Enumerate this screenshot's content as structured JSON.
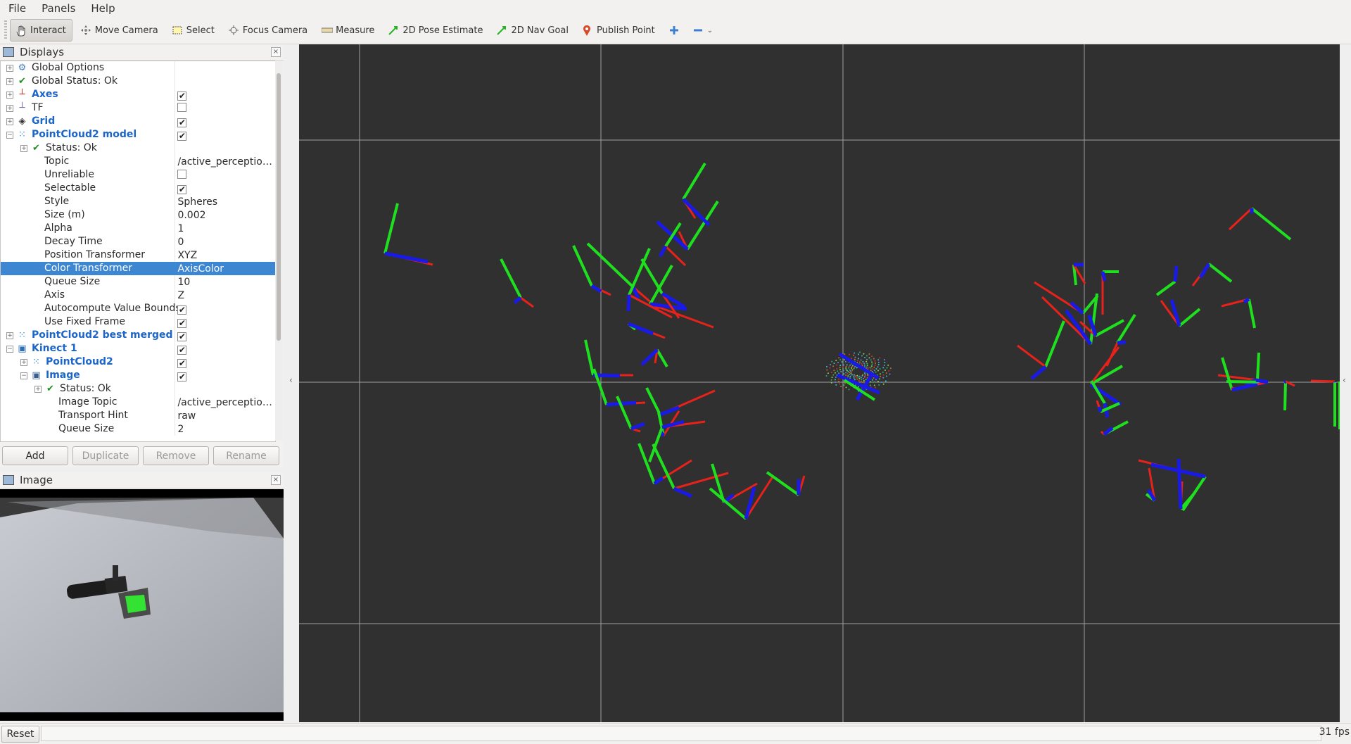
{
  "menu": [
    {
      "label": "File"
    },
    {
      "label": "Panels"
    },
    {
      "label": "Help"
    }
  ],
  "toolbar": {
    "tools": [
      {
        "label": "Interact",
        "icon": "hand-icon",
        "active": true
      },
      {
        "label": "Move Camera",
        "icon": "move-camera-icon"
      },
      {
        "label": "Select",
        "icon": "select-icon"
      },
      {
        "label": "Focus Camera",
        "icon": "focus-camera-icon"
      },
      {
        "label": "Measure",
        "icon": "ruler-icon"
      },
      {
        "label": "2D Pose Estimate",
        "icon": "green-arrow-icon"
      },
      {
        "label": "2D Nav Goal",
        "icon": "green-arrow-icon"
      },
      {
        "label": "Publish Point",
        "icon": "map-pin-icon"
      }
    ]
  },
  "displays_panel": {
    "title": "Displays",
    "rows": [
      {
        "name": "Global Options",
        "value": "",
        "indent": 0,
        "exp": "+",
        "icon": "gear-icon"
      },
      {
        "name": "Global Status: Ok",
        "value": "",
        "indent": 0,
        "exp": "+",
        "icon": "check-icon"
      },
      {
        "name": "Axes",
        "value": "",
        "check": true,
        "indent": 0,
        "exp": "+",
        "icon": "axes-icon",
        "blue": true
      },
      {
        "name": "TF",
        "value": "",
        "check": false,
        "indent": 0,
        "exp": "+",
        "icon": "tf-icon"
      },
      {
        "name": "Grid",
        "value": "",
        "check": true,
        "indent": 0,
        "exp": "+",
        "icon": "grid-icon",
        "blue": true
      },
      {
        "name": "PointCloud2 model",
        "value": "",
        "check": true,
        "indent": 0,
        "exp": "-",
        "icon": "pointcloud-icon",
        "blue": true
      },
      {
        "name": "Status: Ok",
        "value": "",
        "indent": 1,
        "exp": "+",
        "icon": "check-icon"
      },
      {
        "name": "Topic",
        "value": "/active_perception...",
        "indent": 1
      },
      {
        "name": "Unreliable",
        "value": "",
        "check": false,
        "indent": 1
      },
      {
        "name": "Selectable",
        "value": "",
        "check": true,
        "indent": 1
      },
      {
        "name": "Style",
        "value": "Spheres",
        "indent": 1
      },
      {
        "name": "Size (m)",
        "value": "0.002",
        "indent": 1
      },
      {
        "name": "Alpha",
        "value": "1",
        "indent": 1
      },
      {
        "name": "Decay Time",
        "value": "0",
        "indent": 1
      },
      {
        "name": "Position Transformer",
        "value": "XYZ",
        "indent": 1
      },
      {
        "name": "Color Transformer",
        "value": "AxisColor",
        "indent": 1,
        "selected": true
      },
      {
        "name": "Queue Size",
        "value": "10",
        "indent": 1
      },
      {
        "name": "Axis",
        "value": "Z",
        "indent": 1
      },
      {
        "name": "Autocompute Value Bounds",
        "value": "",
        "check": true,
        "indent": 1
      },
      {
        "name": "Use Fixed Frame",
        "value": "",
        "check": true,
        "indent": 1
      },
      {
        "name": "PointCloud2 best merged",
        "value": "",
        "check": true,
        "indent": 0,
        "exp": "+",
        "icon": "pointcloud-icon",
        "blue": true
      },
      {
        "name": "Kinect 1",
        "value": "",
        "check": true,
        "indent": 0,
        "exp": "-",
        "icon": "folder-icon",
        "blue": true
      },
      {
        "name": "PointCloud2",
        "value": "",
        "check": true,
        "indent": 1,
        "exp": "+",
        "icon": "pointcloud-icon",
        "blue": true
      },
      {
        "name": "Image",
        "value": "",
        "check": true,
        "indent": 1,
        "exp": "-",
        "icon": "image-icon",
        "blue": true
      },
      {
        "name": "Status: Ok",
        "value": "",
        "indent": 2,
        "exp": "+",
        "icon": "check-icon"
      },
      {
        "name": "Image Topic",
        "value": "/active_perception...",
        "indent": 2
      },
      {
        "name": "Transport Hint",
        "value": "raw",
        "indent": 2
      },
      {
        "name": "Queue Size",
        "value": "2",
        "indent": 2
      }
    ],
    "buttons": {
      "add": "Add",
      "duplicate": "Duplicate",
      "remove": "Remove",
      "rename": "Rename"
    }
  },
  "image_panel": {
    "title": "Image"
  },
  "status": {
    "reset": "Reset",
    "fps": "31 fps"
  },
  "colors": {
    "x_axis": "#e8221b",
    "y_axis": "#1fe01f",
    "z_axis": "#1a1ae6",
    "viewport_bg": "#303030",
    "grid": "#a0a0a0",
    "selection": "#3d86d1"
  }
}
